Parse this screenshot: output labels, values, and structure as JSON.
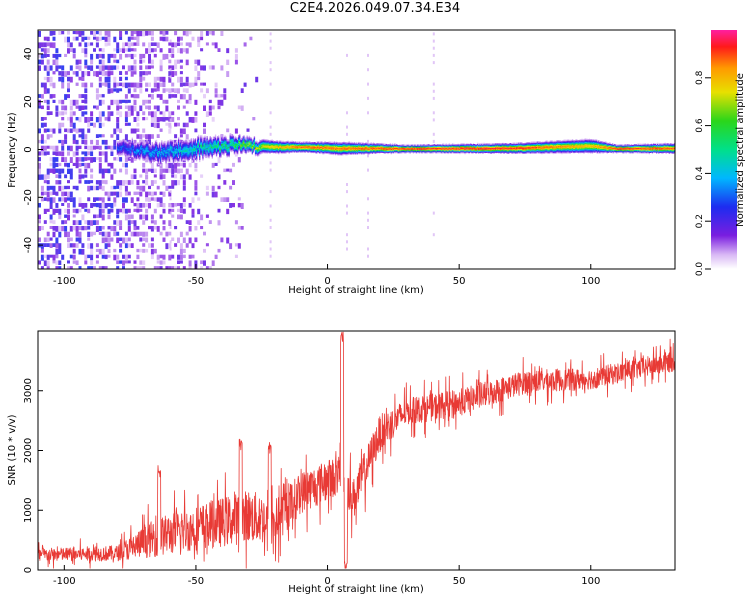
{
  "title": "C2E4.2026.049.07.34.E34",
  "chart_data": [
    {
      "id": "spectrogram",
      "type": "heatmap",
      "xlabel": "Height of straight line (km)",
      "ylabel": "Frequency (Hz)",
      "xlim": [
        -110,
        132
      ],
      "ylim": [
        -50,
        50
      ],
      "xticks": [
        -100,
        -50,
        0,
        50,
        100
      ],
      "yticks": [
        -40,
        -20,
        0,
        20,
        40
      ],
      "ridge": [
        {
          "x": -80,
          "f": 1.5,
          "amp": 0.3,
          "width": 3.5
        },
        {
          "x": -65,
          "f": -1.5,
          "amp": 0.4,
          "width": 4.5
        },
        {
          "x": -50,
          "f": 0.5,
          "amp": 0.48,
          "width": 4.5
        },
        {
          "x": -35,
          "f": 2.0,
          "amp": 0.6,
          "width": 3.5
        },
        {
          "x": -20,
          "f": 1.0,
          "amp": 0.8,
          "width": 2.5
        },
        {
          "x": -10,
          "f": 1.0,
          "amp": 0.9,
          "width": 2.0
        },
        {
          "x": 5,
          "f": 0.5,
          "amp": 0.88,
          "width": 2.5
        },
        {
          "x": 30,
          "f": 0.3,
          "amp": 0.95,
          "width": 1.5
        },
        {
          "x": 70,
          "f": 0.5,
          "amp": 0.95,
          "width": 2.0
        },
        {
          "x": 100,
          "f": 1.5,
          "amp": 0.8,
          "width": 2.8
        },
        {
          "x": 110,
          "f": 0.3,
          "amp": 0.95,
          "width": 1.5
        },
        {
          "x": 132,
          "f": 0.5,
          "amp": 0.9,
          "width": 2.0
        }
      ],
      "noise_extent_x": [
        -110,
        -55
      ],
      "colorbar": {
        "label": "Normalized spectral amplitude",
        "range": [
          0,
          1
        ],
        "ticks": [
          0.0,
          0.2,
          0.4,
          0.6,
          0.8
        ]
      }
    },
    {
      "id": "snr",
      "type": "line",
      "xlabel": "Height of straight line (km)",
      "ylabel": "SNR (10 * v/v)",
      "xlim": [
        -110,
        132
      ],
      "ylim": [
        0,
        4000
      ],
      "xticks": [
        -100,
        -50,
        0,
        50,
        100
      ],
      "yticks": [
        0,
        1000,
        2000,
        3000
      ],
      "color": "#e83a35",
      "trend": [
        {
          "x": -110,
          "y": 250,
          "spread": 220
        },
        {
          "x": -80,
          "y": 280,
          "spread": 260
        },
        {
          "x": -65,
          "y": 550,
          "spread": 650
        },
        {
          "x": -50,
          "y": 700,
          "spread": 750
        },
        {
          "x": -30,
          "y": 900,
          "spread": 900
        },
        {
          "x": -20,
          "y": 800,
          "spread": 800
        },
        {
          "x": -10,
          "y": 1300,
          "spread": 700
        },
        {
          "x": 0,
          "y": 1500,
          "spread": 700
        },
        {
          "x": 5,
          "y": 1600,
          "spread": 600
        },
        {
          "x": 10,
          "y": 1200,
          "spread": 700
        },
        {
          "x": 20,
          "y": 2300,
          "spread": 600
        },
        {
          "x": 30,
          "y": 2650,
          "spread": 450
        },
        {
          "x": 50,
          "y": 2800,
          "spread": 450
        },
        {
          "x": 75,
          "y": 3150,
          "spread": 400
        },
        {
          "x": 100,
          "y": 3200,
          "spread": 350
        },
        {
          "x": 132,
          "y": 3500,
          "spread": 350
        }
      ],
      "spikes": [
        {
          "x": 5.5,
          "y": 3900
        },
        {
          "x": 7,
          "y": 80
        },
        {
          "x": -64,
          "y": 1650
        },
        {
          "x": -22,
          "y": 2050
        },
        {
          "x": -33,
          "y": 2100
        }
      ]
    }
  ]
}
